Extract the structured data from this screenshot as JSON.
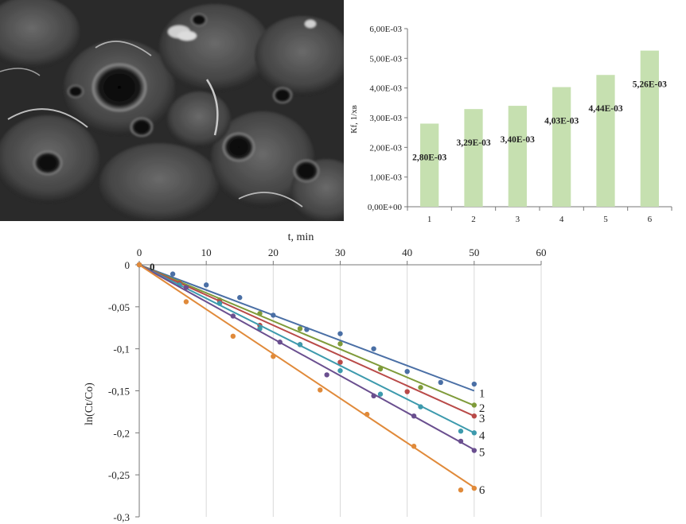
{
  "micrograph": {
    "description_icon": "sem-micrograph-image"
  },
  "bar_chart": {
    "ylabel": "Кf, 1/хв",
    "ytick_labels": [
      "0,00E+00",
      "1,00E-03",
      "2,00E-03",
      "3,00E-03",
      "4,00E-03",
      "5,00E-03",
      "6,00E-03"
    ],
    "bar_labels": [
      "2,80E-03",
      "3,29E-03",
      "3,40E-03",
      "4,03E-03",
      "4,44E-03",
      "5,26E-03"
    ],
    "bar_color": "#c6e0b0"
  },
  "line_chart": {
    "xlabel": "t, min",
    "ylabel": "ln(Ct/Co)",
    "xtick_labels": [
      "0",
      "10",
      "20",
      "30",
      "40",
      "50",
      "60"
    ],
    "ytick_labels": [
      "0",
      "-0,05",
      "-0,1",
      "-0,15",
      "-0,2",
      "-0,25",
      "-0,3"
    ],
    "origin_label": "0",
    "line_labels": [
      "1",
      "2",
      "3",
      "4",
      "5",
      "6"
    ]
  },
  "chart_data": [
    {
      "type": "bar",
      "categories": [
        "1",
        "2",
        "3",
        "4",
        "5",
        "6"
      ],
      "values": [
        0.0028,
        0.00329,
        0.0034,
        0.00403,
        0.00444,
        0.00526
      ],
      "ylabel": "Кf, 1/хв",
      "ylim": [
        0,
        0.006
      ],
      "grid": false
    },
    {
      "type": "scatter",
      "xlabel": "t, min",
      "ylabel": "ln(Ct/Co)",
      "xlim": [
        0,
        60
      ],
      "ylim": [
        -0.3,
        0
      ],
      "grid": true,
      "series": [
        {
          "name": "1",
          "color": "#4a6fa5",
          "slope": -0.003,
          "x": [
            0,
            5,
            10,
            15,
            20,
            25,
            30,
            35,
            40,
            45,
            50
          ],
          "y": [
            0,
            -0.011,
            -0.024,
            -0.039,
            -0.06,
            -0.077,
            -0.082,
            -0.1,
            -0.127,
            -0.14,
            -0.142
          ]
        },
        {
          "name": "2",
          "color": "#7f9b3a",
          "slope": -0.00335,
          "x": [
            0,
            6,
            12,
            18,
            24,
            30,
            36,
            42,
            50
          ],
          "y": [
            0,
            -0.021,
            -0.042,
            -0.058,
            -0.076,
            -0.094,
            -0.124,
            -0.146,
            -0.167
          ]
        },
        {
          "name": "3",
          "color": "#b94a48",
          "slope": -0.0036,
          "x": [
            0,
            6,
            12,
            18,
            24,
            30,
            40,
            50
          ],
          "y": [
            0,
            -0.022,
            -0.044,
            -0.072,
            -0.095,
            -0.116,
            -0.151,
            -0.18
          ]
        },
        {
          "name": "4",
          "color": "#3d9aad",
          "slope": -0.004,
          "x": [
            0,
            6,
            12,
            18,
            24,
            30,
            36,
            42,
            48,
            50
          ],
          "y": [
            0,
            -0.024,
            -0.046,
            -0.076,
            -0.095,
            -0.126,
            -0.154,
            -0.169,
            -0.198,
            -0.2
          ]
        },
        {
          "name": "5",
          "color": "#6a4f8f",
          "slope": -0.0044,
          "x": [
            0,
            7,
            14,
            21,
            28,
            35,
            41,
            48,
            50
          ],
          "y": [
            0,
            -0.027,
            -0.061,
            -0.092,
            -0.131,
            -0.156,
            -0.18,
            -0.21,
            -0.221
          ]
        },
        {
          "name": "6",
          "color": "#e08a3a",
          "slope": -0.0053,
          "x": [
            0,
            7,
            14,
            20,
            27,
            34,
            41,
            48,
            50
          ],
          "y": [
            0,
            -0.044,
            -0.085,
            -0.109,
            -0.149,
            -0.178,
            -0.216,
            -0.268,
            -0.266
          ]
        }
      ]
    }
  ]
}
